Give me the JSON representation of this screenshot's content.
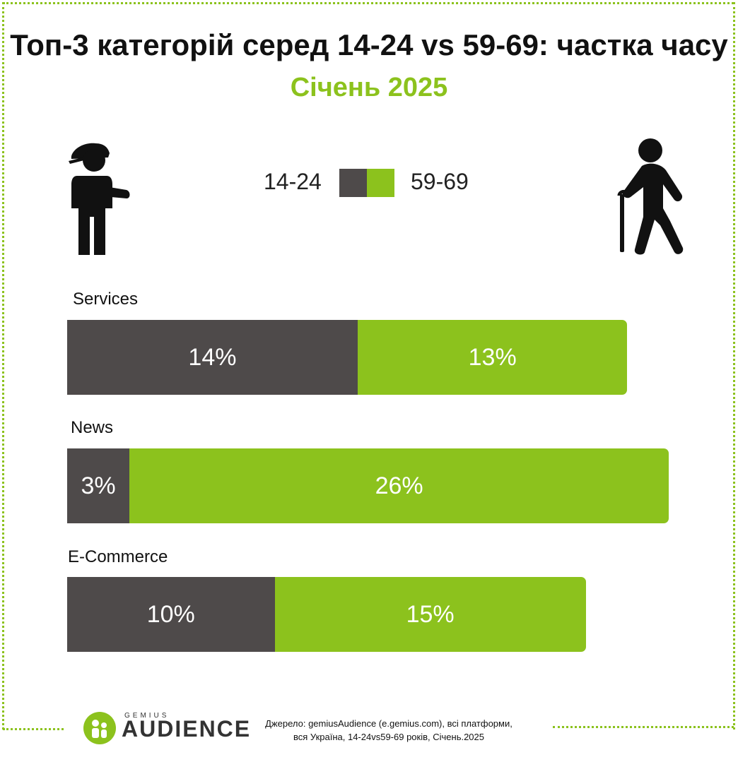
{
  "title": "Топ-3 категорій серед 14-24 vs 59-69: частка часу",
  "subtitle": "Січень 2025",
  "legend": {
    "young_label": "14-24",
    "old_label": "59-69"
  },
  "colors": {
    "young": "#4e4a4a",
    "old": "#8cc21d",
    "accent": "#8cc21d"
  },
  "icons": {
    "young": "young-person-cap-icon",
    "old": "elderly-person-cane-icon",
    "logo": "gemius-audience-logo-icon"
  },
  "chart_data": {
    "type": "bar",
    "orientation": "horizontal",
    "stacked": true,
    "categories": [
      "Services",
      "News",
      "E-Commerce"
    ],
    "series": [
      {
        "name": "14-24",
        "values": [
          14,
          3,
          10
        ],
        "labels": [
          "14%",
          "3%",
          "10%"
        ]
      },
      {
        "name": "59-69",
        "values": [
          13,
          26,
          15
        ],
        "labels": [
          "13%",
          "26%",
          "15%"
        ]
      }
    ],
    "title": "Топ-3 категорій серед 14-24 vs 59-69: частка часу",
    "subtitle": "Січень 2025",
    "legend_placement": "top-center",
    "grid": false
  },
  "footer": {
    "logo_small": "GEMIUS",
    "logo_big": "AUDIENCE",
    "source_line1": "Джерело: gemiusAudience (e.gemius.com), всі платформи,",
    "source_line2": "вся Україна, 14-24vs59-69 років, Січень.2025"
  }
}
